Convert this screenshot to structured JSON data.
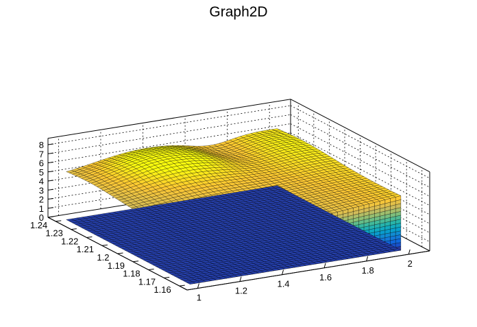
{
  "chart_data": {
    "type": "surface3d",
    "title": "Graph2D",
    "x_axis": {
      "ticks": [
        "1",
        "1.2",
        "1.4",
        "1.6",
        "1.8",
        "2"
      ],
      "range": [
        0.95,
        2.1
      ]
    },
    "y_axis": {
      "ticks": [
        "1.16",
        "1.17",
        "1.18",
        "1.19",
        "1.2",
        "1.21",
        "1.22",
        "1.23",
        "1.24"
      ],
      "range": [
        1.155,
        1.245
      ]
    },
    "z_axis": {
      "ticks": [
        "0",
        "1",
        "2",
        "3",
        "4",
        "5",
        "6",
        "7",
        "8"
      ],
      "range": [
        0,
        8.7
      ]
    },
    "grid": true,
    "palette": [
      "#352a87",
      "#0f5cdd",
      "#1481d6",
      "#06a4ca",
      "#2eb7a4",
      "#87bf77",
      "#d1bb59",
      "#fec832",
      "#f9fb0e"
    ],
    "surface_summary": {
      "x_range": [
        1.0,
        2.0
      ],
      "y_range": [
        1.16,
        1.24
      ],
      "z_near_edge_left": 3.6,
      "z_near_edge_right": 6.0,
      "z_left_back_plateau": 5.0,
      "z_peak_center": 7.0,
      "z_valley_center_right": 5.6,
      "z_peak_right": 6.3
    }
  }
}
